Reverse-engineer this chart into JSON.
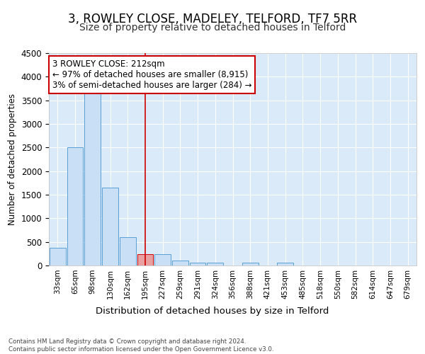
{
  "title1": "3, ROWLEY CLOSE, MADELEY, TELFORD, TF7 5RR",
  "title2": "Size of property relative to detached houses in Telford",
  "xlabel": "Distribution of detached houses by size in Telford",
  "ylabel": "Number of detached properties",
  "categories": [
    "33sqm",
    "65sqm",
    "98sqm",
    "130sqm",
    "162sqm",
    "195sqm",
    "227sqm",
    "259sqm",
    "291sqm",
    "324sqm",
    "356sqm",
    "388sqm",
    "421sqm",
    "453sqm",
    "485sqm",
    "518sqm",
    "550sqm",
    "582sqm",
    "614sqm",
    "647sqm",
    "679sqm"
  ],
  "values": [
    380,
    2500,
    3740,
    1650,
    600,
    240,
    240,
    110,
    60,
    55,
    0,
    55,
    0,
    55,
    0,
    0,
    0,
    0,
    0,
    0,
    0
  ],
  "bar_color": "#c8dff5",
  "bar_edge_color": "#5a9fd4",
  "highlight_bar_index": 5,
  "highlight_bar_color": "#e8a0a0",
  "highlight_bar_edge_color": "#cc0000",
  "vline_color": "#cc0000",
  "annotation_text": "3 ROWLEY CLOSE: 212sqm\n← 97% of detached houses are smaller (8,915)\n3% of semi-detached houses are larger (284) →",
  "annotation_box_facecolor": "#ffffff",
  "annotation_box_edgecolor": "#cc0000",
  "ylim": [
    0,
    4500
  ],
  "yticks": [
    0,
    500,
    1000,
    1500,
    2000,
    2500,
    3000,
    3500,
    4000,
    4500
  ],
  "background_color": "#daeaf8",
  "grid_color": "#ffffff",
  "fig_background": "#ffffff",
  "footer_text": "Contains HM Land Registry data © Crown copyright and database right 2024.\nContains public sector information licensed under the Open Government Licence v3.0.",
  "title1_fontsize": 12,
  "title2_fontsize": 10
}
